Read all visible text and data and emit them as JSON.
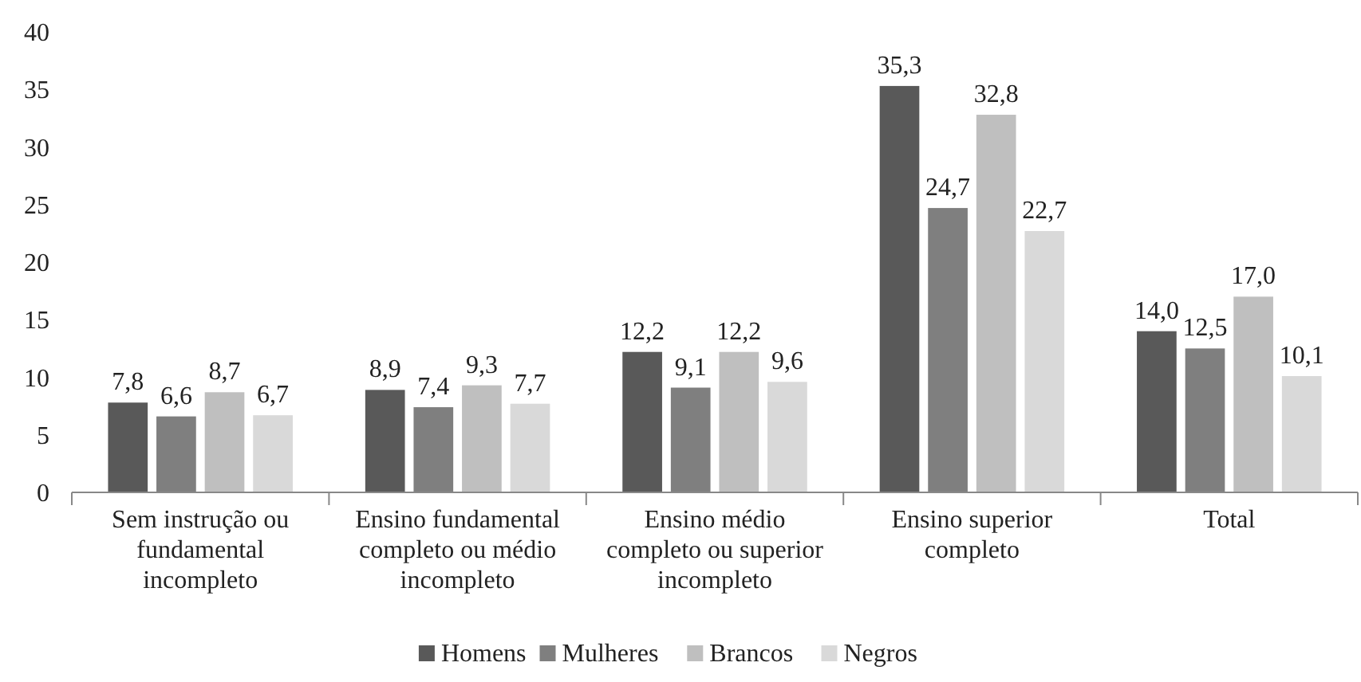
{
  "chart_data": {
    "type": "bar",
    "categories": [
      "Sem instrução ou fundamental incompleto",
      "Ensino fundamental completo ou médio incompleto",
      "Ensino médio completo ou superior incompleto",
      "Ensino superior completo",
      "Total"
    ],
    "series": [
      {
        "name": "Homens",
        "color": "#595959",
        "values": [
          7.8,
          8.9,
          12.2,
          35.3,
          14.0
        ],
        "value_labels": [
          "7,8",
          "8,9",
          "12,2",
          "35,3",
          "14,0"
        ]
      },
      {
        "name": "Mulheres",
        "color": "#7f7f7f",
        "values": [
          6.6,
          7.4,
          9.1,
          24.7,
          12.5
        ],
        "value_labels": [
          "6,6",
          "7,4",
          "9,1",
          "24,7",
          "12,5"
        ]
      },
      {
        "name": "Brancos",
        "color": "#bfbfbf",
        "values": [
          8.7,
          9.3,
          12.2,
          32.8,
          17.0
        ],
        "value_labels": [
          "8,7",
          "9,3",
          "12,2",
          "32,8",
          "17,0"
        ]
      },
      {
        "name": "Negros",
        "color": "#d9d9d9",
        "values": [
          6.7,
          7.7,
          9.6,
          22.7,
          10.1
        ],
        "value_labels": [
          "6,7",
          "7,7",
          "9,6",
          "22,7",
          "10,1"
        ]
      }
    ],
    "ylim": [
      0,
      40
    ],
    "yticks": [
      0,
      5,
      10,
      15,
      20,
      25,
      30,
      35,
      40
    ],
    "grid": false,
    "legend": "bottom"
  }
}
